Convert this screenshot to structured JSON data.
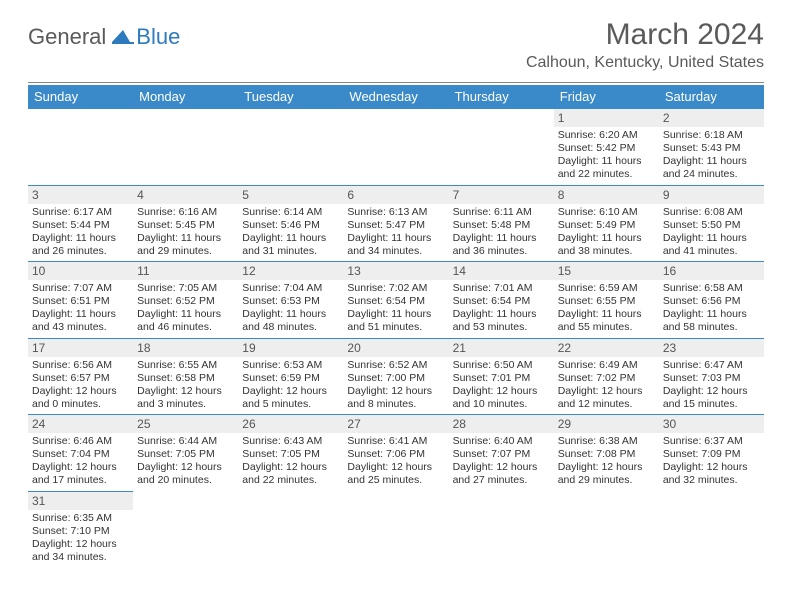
{
  "logo": {
    "word1": "General",
    "word2": "Blue"
  },
  "title": "March 2024",
  "subtitle": "Calhoun, Kentucky, United States",
  "colors": {
    "header_bg": "#3a89c9",
    "header_fg": "#ffffff",
    "daynum_bg": "#eeeeee",
    "text": "#333333",
    "rule": "#888888",
    "title_fg": "#5a5a5a"
  },
  "dayNames": [
    "Sunday",
    "Monday",
    "Tuesday",
    "Wednesday",
    "Thursday",
    "Friday",
    "Saturday"
  ],
  "weeks": [
    [
      null,
      null,
      null,
      null,
      null,
      {
        "n": "1",
        "sr": "Sunrise: 6:20 AM",
        "ss": "Sunset: 5:42 PM",
        "d1": "Daylight: 11 hours",
        "d2": "and 22 minutes."
      },
      {
        "n": "2",
        "sr": "Sunrise: 6:18 AM",
        "ss": "Sunset: 5:43 PM",
        "d1": "Daylight: 11 hours",
        "d2": "and 24 minutes."
      }
    ],
    [
      {
        "n": "3",
        "sr": "Sunrise: 6:17 AM",
        "ss": "Sunset: 5:44 PM",
        "d1": "Daylight: 11 hours",
        "d2": "and 26 minutes."
      },
      {
        "n": "4",
        "sr": "Sunrise: 6:16 AM",
        "ss": "Sunset: 5:45 PM",
        "d1": "Daylight: 11 hours",
        "d2": "and 29 minutes."
      },
      {
        "n": "5",
        "sr": "Sunrise: 6:14 AM",
        "ss": "Sunset: 5:46 PM",
        "d1": "Daylight: 11 hours",
        "d2": "and 31 minutes."
      },
      {
        "n": "6",
        "sr": "Sunrise: 6:13 AM",
        "ss": "Sunset: 5:47 PM",
        "d1": "Daylight: 11 hours",
        "d2": "and 34 minutes."
      },
      {
        "n": "7",
        "sr": "Sunrise: 6:11 AM",
        "ss": "Sunset: 5:48 PM",
        "d1": "Daylight: 11 hours",
        "d2": "and 36 minutes."
      },
      {
        "n": "8",
        "sr": "Sunrise: 6:10 AM",
        "ss": "Sunset: 5:49 PM",
        "d1": "Daylight: 11 hours",
        "d2": "and 38 minutes."
      },
      {
        "n": "9",
        "sr": "Sunrise: 6:08 AM",
        "ss": "Sunset: 5:50 PM",
        "d1": "Daylight: 11 hours",
        "d2": "and 41 minutes."
      }
    ],
    [
      {
        "n": "10",
        "sr": "Sunrise: 7:07 AM",
        "ss": "Sunset: 6:51 PM",
        "d1": "Daylight: 11 hours",
        "d2": "and 43 minutes."
      },
      {
        "n": "11",
        "sr": "Sunrise: 7:05 AM",
        "ss": "Sunset: 6:52 PM",
        "d1": "Daylight: 11 hours",
        "d2": "and 46 minutes."
      },
      {
        "n": "12",
        "sr": "Sunrise: 7:04 AM",
        "ss": "Sunset: 6:53 PM",
        "d1": "Daylight: 11 hours",
        "d2": "and 48 minutes."
      },
      {
        "n": "13",
        "sr": "Sunrise: 7:02 AM",
        "ss": "Sunset: 6:54 PM",
        "d1": "Daylight: 11 hours",
        "d2": "and 51 minutes."
      },
      {
        "n": "14",
        "sr": "Sunrise: 7:01 AM",
        "ss": "Sunset: 6:54 PM",
        "d1": "Daylight: 11 hours",
        "d2": "and 53 minutes."
      },
      {
        "n": "15",
        "sr": "Sunrise: 6:59 AM",
        "ss": "Sunset: 6:55 PM",
        "d1": "Daylight: 11 hours",
        "d2": "and 55 minutes."
      },
      {
        "n": "16",
        "sr": "Sunrise: 6:58 AM",
        "ss": "Sunset: 6:56 PM",
        "d1": "Daylight: 11 hours",
        "d2": "and 58 minutes."
      }
    ],
    [
      {
        "n": "17",
        "sr": "Sunrise: 6:56 AM",
        "ss": "Sunset: 6:57 PM",
        "d1": "Daylight: 12 hours",
        "d2": "and 0 minutes."
      },
      {
        "n": "18",
        "sr": "Sunrise: 6:55 AM",
        "ss": "Sunset: 6:58 PM",
        "d1": "Daylight: 12 hours",
        "d2": "and 3 minutes."
      },
      {
        "n": "19",
        "sr": "Sunrise: 6:53 AM",
        "ss": "Sunset: 6:59 PM",
        "d1": "Daylight: 12 hours",
        "d2": "and 5 minutes."
      },
      {
        "n": "20",
        "sr": "Sunrise: 6:52 AM",
        "ss": "Sunset: 7:00 PM",
        "d1": "Daylight: 12 hours",
        "d2": "and 8 minutes."
      },
      {
        "n": "21",
        "sr": "Sunrise: 6:50 AM",
        "ss": "Sunset: 7:01 PM",
        "d1": "Daylight: 12 hours",
        "d2": "and 10 minutes."
      },
      {
        "n": "22",
        "sr": "Sunrise: 6:49 AM",
        "ss": "Sunset: 7:02 PM",
        "d1": "Daylight: 12 hours",
        "d2": "and 12 minutes."
      },
      {
        "n": "23",
        "sr": "Sunrise: 6:47 AM",
        "ss": "Sunset: 7:03 PM",
        "d1": "Daylight: 12 hours",
        "d2": "and 15 minutes."
      }
    ],
    [
      {
        "n": "24",
        "sr": "Sunrise: 6:46 AM",
        "ss": "Sunset: 7:04 PM",
        "d1": "Daylight: 12 hours",
        "d2": "and 17 minutes."
      },
      {
        "n": "25",
        "sr": "Sunrise: 6:44 AM",
        "ss": "Sunset: 7:05 PM",
        "d1": "Daylight: 12 hours",
        "d2": "and 20 minutes."
      },
      {
        "n": "26",
        "sr": "Sunrise: 6:43 AM",
        "ss": "Sunset: 7:05 PM",
        "d1": "Daylight: 12 hours",
        "d2": "and 22 minutes."
      },
      {
        "n": "27",
        "sr": "Sunrise: 6:41 AM",
        "ss": "Sunset: 7:06 PM",
        "d1": "Daylight: 12 hours",
        "d2": "and 25 minutes."
      },
      {
        "n": "28",
        "sr": "Sunrise: 6:40 AM",
        "ss": "Sunset: 7:07 PM",
        "d1": "Daylight: 12 hours",
        "d2": "and 27 minutes."
      },
      {
        "n": "29",
        "sr": "Sunrise: 6:38 AM",
        "ss": "Sunset: 7:08 PM",
        "d1": "Daylight: 12 hours",
        "d2": "and 29 minutes."
      },
      {
        "n": "30",
        "sr": "Sunrise: 6:37 AM",
        "ss": "Sunset: 7:09 PM",
        "d1": "Daylight: 12 hours",
        "d2": "and 32 minutes."
      }
    ],
    [
      {
        "n": "31",
        "sr": "Sunrise: 6:35 AM",
        "ss": "Sunset: 7:10 PM",
        "d1": "Daylight: 12 hours",
        "d2": "and 34 minutes."
      },
      null,
      null,
      null,
      null,
      null,
      null
    ]
  ]
}
